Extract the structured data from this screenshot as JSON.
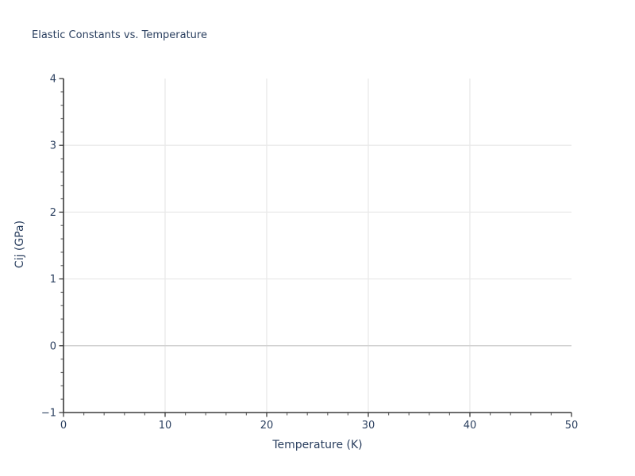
{
  "chart_data": {
    "type": "scatter",
    "title": "Elastic Constants vs. Temperature",
    "xlabel": "Temperature (K)",
    "ylabel": "Cij (GPa)",
    "xlim": [
      0,
      50
    ],
    "ylim": [
      -1,
      4
    ],
    "grid": true,
    "legend": "none",
    "series": [],
    "x_axis": {
      "major_ticks": [
        0,
        10,
        20,
        30,
        40,
        50
      ],
      "tick_labels": [
        "0",
        "10",
        "20",
        "30",
        "40",
        "50"
      ],
      "minor_tick_step": 2,
      "gridline_values": [
        10,
        20,
        30,
        40
      ]
    },
    "y_axis": {
      "major_ticks": [
        -1,
        0,
        1,
        2,
        3,
        4
      ],
      "tick_labels": [
        "−1",
        "0",
        "1",
        "2",
        "3",
        "4"
      ],
      "minor_tick_step": 0.2,
      "gridline_values": [
        1,
        2,
        3
      ],
      "zeroline_value": 0
    },
    "colors": {
      "text": "#2a3f5f",
      "gridline": "#e9e9e9",
      "zeroline": "#d2d2d2",
      "axis_line": "#3b3b3b",
      "minor_tick": "#6b6b6b",
      "background": "#ffffff"
    }
  }
}
